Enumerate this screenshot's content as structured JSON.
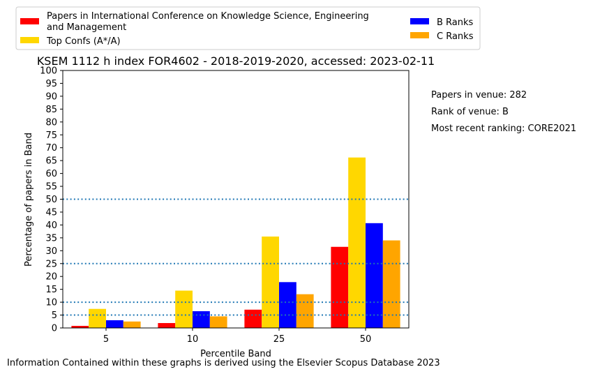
{
  "chart_data": {
    "type": "bar",
    "title": "KSEM 1112 h index FOR4602 - 2018-2019-2020, accessed: 2023-02-11",
    "xlabel": "Percentile Band",
    "ylabel": "Percentage of papers in Band",
    "categories": [
      "5",
      "10",
      "25",
      "50"
    ],
    "ylim": [
      0,
      100
    ],
    "yticks": [
      "0",
      "5",
      "10",
      "15",
      "20",
      "25",
      "30",
      "35",
      "40",
      "45",
      "50",
      "55",
      "60",
      "65",
      "70",
      "75",
      "80",
      "85",
      "90",
      "95",
      "100"
    ],
    "series": [
      {
        "name": "Papers in International Conference on Knowledge Science, Engineering and Management",
        "color": "#ff0000",
        "values": [
          0.8,
          1.9,
          7.1,
          31.5
        ]
      },
      {
        "name": "Top Confs (A*/A)",
        "color": "#ffd700",
        "values": [
          7.4,
          14.5,
          35.5,
          66.2
        ]
      },
      {
        "name": "B Ranks",
        "color": "#0000ff",
        "values": [
          3.0,
          6.5,
          17.8,
          40.7
        ]
      },
      {
        "name": "C Ranks",
        "color": "#ffa500",
        "values": [
          2.5,
          4.5,
          13.1,
          34.0
        ]
      }
    ],
    "reference_lines": [
      5,
      10,
      25,
      50
    ],
    "reference_line_color": "#1f77b4",
    "legend_placement": "top",
    "grid": false
  },
  "legend": {
    "items": [
      {
        "label_line1": "Papers in International Conference on Knowledge Science, Engineering",
        "label_line2": "and Management"
      },
      {
        "label_line1": "Top Confs (A*/A)"
      },
      {
        "label_line1": "B Ranks"
      },
      {
        "label_line1": "C Ranks"
      }
    ]
  },
  "info": {
    "papers": "Papers in venue: 282",
    "rank": "Rank of venue: B",
    "recent": "Most recent ranking: CORE2021"
  },
  "footer": "Information Contained within these graphs is derived using the Elsevier Scopus Database 2023"
}
